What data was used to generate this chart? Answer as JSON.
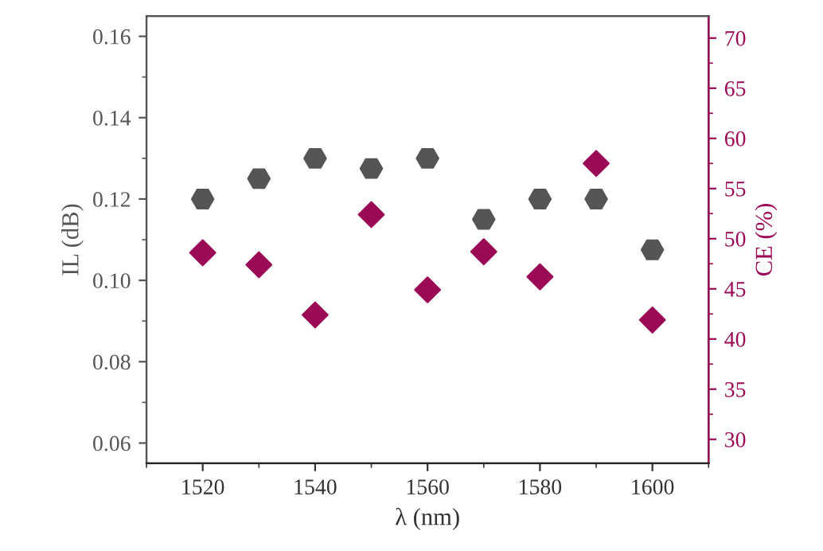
{
  "chart_data": {
    "type": "scatter",
    "xlabel": "λ (nm)",
    "ylabel": "IL (dB)",
    "y2label": "CE (%)",
    "x": [
      1520,
      1530,
      1540,
      1550,
      1560,
      1570,
      1580,
      1590,
      1600
    ],
    "series": [
      {
        "color": "#555555",
        "values": [
          0.12,
          0.125,
          0.13,
          0.1275,
          0.13,
          0.115,
          0.12,
          0.12,
          0.1075
        ]
      },
      {
        "color": "#9b0a55",
        "marker": "diamond",
        "axis": "y2",
        "values": [
          48.6,
          47.4,
          42.4,
          52.4,
          44.9,
          48.7,
          46.2,
          57.5,
          41.9
        ]
      }
    ],
    "xlim": [
      1510,
      1610
    ],
    "xticks": [
      1520,
      1540,
      1560,
      1580,
      1600
    ],
    "ylim": [
      0.055,
      0.165
    ],
    "yticks": [
      {
        "value": 0.06,
        "label": "0.06"
      },
      {
        "value": 0.08,
        "label": "0.08"
      },
      {
        "value": 0.1,
        "label": "0.10"
      },
      {
        "value": 0.12,
        "label": "0.12"
      },
      {
        "value": 0.14,
        "label": "0.14"
      },
      {
        "value": 0.16,
        "label": "0.16"
      }
    ],
    "y2lim": [
      27.6,
      72.2
    ],
    "y2ticks": [
      30,
      35,
      40,
      45,
      50,
      55,
      60,
      65,
      70
    ],
    "grid": false,
    "legend": false
  }
}
